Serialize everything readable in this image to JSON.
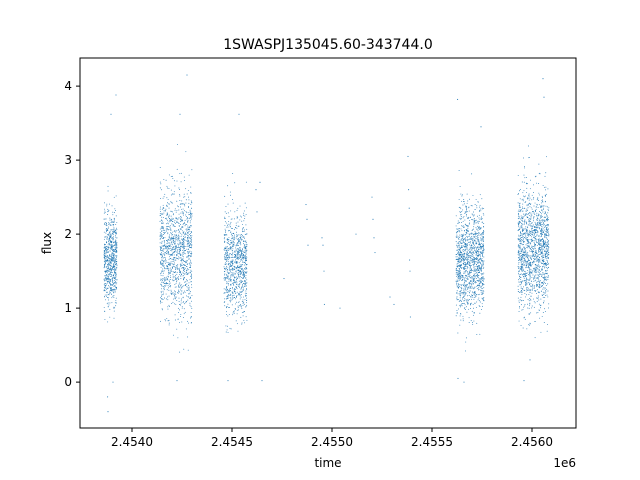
{
  "chart_data": {
    "type": "scatter",
    "title": "1SWASPJ135045.60-343744.0",
    "xlabel": "time",
    "ylabel": "flux",
    "x_offset_label": "1e6",
    "xlim": [
      2453740,
      2456220
    ],
    "ylim": [
      -0.62,
      4.38
    ],
    "x_ticks": [
      2454000,
      2454500,
      2455000,
      2455500,
      2456000
    ],
    "x_tick_labels": [
      "2.4540",
      "2.4545",
      "2.4550",
      "2.4555",
      "2.4560"
    ],
    "y_ticks": [
      0,
      1,
      2,
      3,
      4
    ],
    "y_tick_labels": [
      "0",
      "1",
      "2",
      "3",
      "4"
    ],
    "grid": false,
    "legend": "none",
    "marker_color": "#1f77b4",
    "series": [
      {
        "clusters": [
          {
            "x_range": [
              2453860,
              2453925
            ],
            "median": 1.65,
            "spread": 0.32,
            "count": 700
          },
          {
            "x_range": [
              2454140,
              2454300
            ],
            "median": 1.75,
            "spread": 0.42,
            "count": 1200
          },
          {
            "x_range": [
              2454460,
              2454575
            ],
            "median": 1.6,
            "spread": 0.35,
            "count": 900
          },
          {
            "x_range": [
              2455620,
              2455760
            ],
            "median": 1.65,
            "spread": 0.36,
            "count": 1300
          },
          {
            "x_range": [
              2455930,
              2456085
            ],
            "median": 1.8,
            "spread": 0.4,
            "count": 1500
          }
        ],
        "extremes": [
          {
            "x": 2453880,
            "y": -0.4
          },
          {
            "x": 2453878,
            "y": -0.2
          },
          {
            "x": 2453905,
            "y": 0.0
          },
          {
            "x": 2453895,
            "y": 3.62
          },
          {
            "x": 2453920,
            "y": 3.88
          },
          {
            "x": 2454225,
            "y": 0.02
          },
          {
            "x": 2454240,
            "y": 3.62
          },
          {
            "x": 2454275,
            "y": 4.15
          },
          {
            "x": 2454535,
            "y": 3.62
          },
          {
            "x": 2454480,
            "y": 0.02
          },
          {
            "x": 2454650,
            "y": 0.02
          },
          {
            "x": 2455630,
            "y": 0.05
          },
          {
            "x": 2455660,
            "y": 0.0
          },
          {
            "x": 2455628,
            "y": 3.82
          },
          {
            "x": 2455745,
            "y": 3.45
          },
          {
            "x": 2455960,
            "y": 0.02
          },
          {
            "x": 2455990,
            "y": 0.3
          },
          {
            "x": 2456055,
            "y": 4.1
          },
          {
            "x": 2456060,
            "y": 3.85
          }
        ],
        "sparse": [
          {
            "x": 2454620,
            "y": 2.6
          },
          {
            "x": 2454625,
            "y": 2.3
          },
          {
            "x": 2454640,
            "y": 2.7
          },
          {
            "x": 2454760,
            "y": 1.4
          },
          {
            "x": 2454870,
            "y": 2.4
          },
          {
            "x": 2454875,
            "y": 2.2
          },
          {
            "x": 2454880,
            "y": 1.85
          },
          {
            "x": 2454950,
            "y": 1.95
          },
          {
            "x": 2454955,
            "y": 1.85
          },
          {
            "x": 2454960,
            "y": 1.5
          },
          {
            "x": 2454962,
            "y": 1.05
          },
          {
            "x": 2455040,
            "y": 1.0
          },
          {
            "x": 2455120,
            "y": 2.0
          },
          {
            "x": 2455200,
            "y": 2.5
          },
          {
            "x": 2455205,
            "y": 2.2
          },
          {
            "x": 2455210,
            "y": 1.95
          },
          {
            "x": 2455215,
            "y": 1.75
          },
          {
            "x": 2455290,
            "y": 1.15
          },
          {
            "x": 2455310,
            "y": 1.05
          },
          {
            "x": 2455380,
            "y": 3.05
          },
          {
            "x": 2455383,
            "y": 2.6
          },
          {
            "x": 2455386,
            "y": 2.35
          },
          {
            "x": 2455388,
            "y": 1.65
          },
          {
            "x": 2455390,
            "y": 1.5
          },
          {
            "x": 2455392,
            "y": 0.88
          }
        ]
      }
    ]
  }
}
